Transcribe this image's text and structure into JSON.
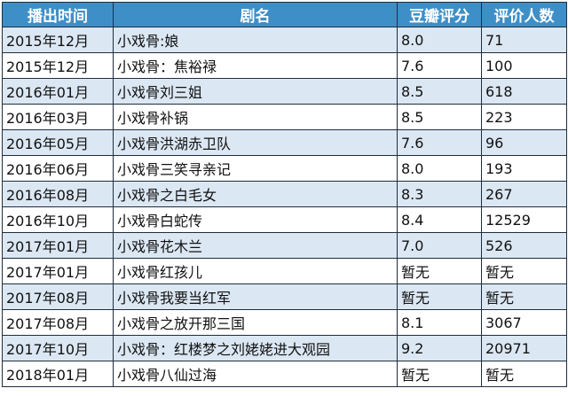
{
  "table": {
    "headers": [
      "播出时间",
      "剧名",
      "豆瓣评分",
      "评价人数"
    ],
    "rows": [
      [
        "2015年12月",
        "小戏骨:娘",
        "8.0",
        "71"
      ],
      [
        "2015年12月",
        "小戏骨：焦裕禄",
        "7.6",
        "100"
      ],
      [
        "2016年01月",
        "小戏骨刘三姐",
        "8.5",
        "618"
      ],
      [
        "2016年03月",
        "小戏骨补锅",
        "8.5",
        "223"
      ],
      [
        "2016年05月",
        "小戏骨洪湖赤卫队",
        "7.6",
        "96"
      ],
      [
        "2016年06月",
        "小戏骨三笑寻亲记",
        "8.0",
        "193"
      ],
      [
        "2016年08月",
        "小戏骨之白毛女",
        "8.3",
        "267"
      ],
      [
        "2016年10月",
        "小戏骨白蛇传",
        "8.4",
        "12529"
      ],
      [
        "2017年01月",
        "小戏骨花木兰",
        "7.0",
        "526"
      ],
      [
        "2017年01月",
        "小戏骨红孩儿",
        "暂无",
        "暂无"
      ],
      [
        "2017年08月",
        "小戏骨我要当红军",
        "暂无",
        "暂无"
      ],
      [
        "2017年08月",
        "小戏骨之放开那三国",
        "8.1",
        "3067"
      ],
      [
        "2017年10月",
        "小戏骨：红楼梦之刘姥姥进大观园",
        "9.2",
        "20971"
      ],
      [
        "2018年01月",
        "小戏骨八仙过海",
        "暂无",
        "暂无"
      ]
    ]
  },
  "colors": {
    "header_bg": "#3e8fc7",
    "header_text": "#ffffff",
    "stripe_bg": "#dbe7f3",
    "plain_bg": "#ffffff",
    "border": "#1f2d3d"
  }
}
